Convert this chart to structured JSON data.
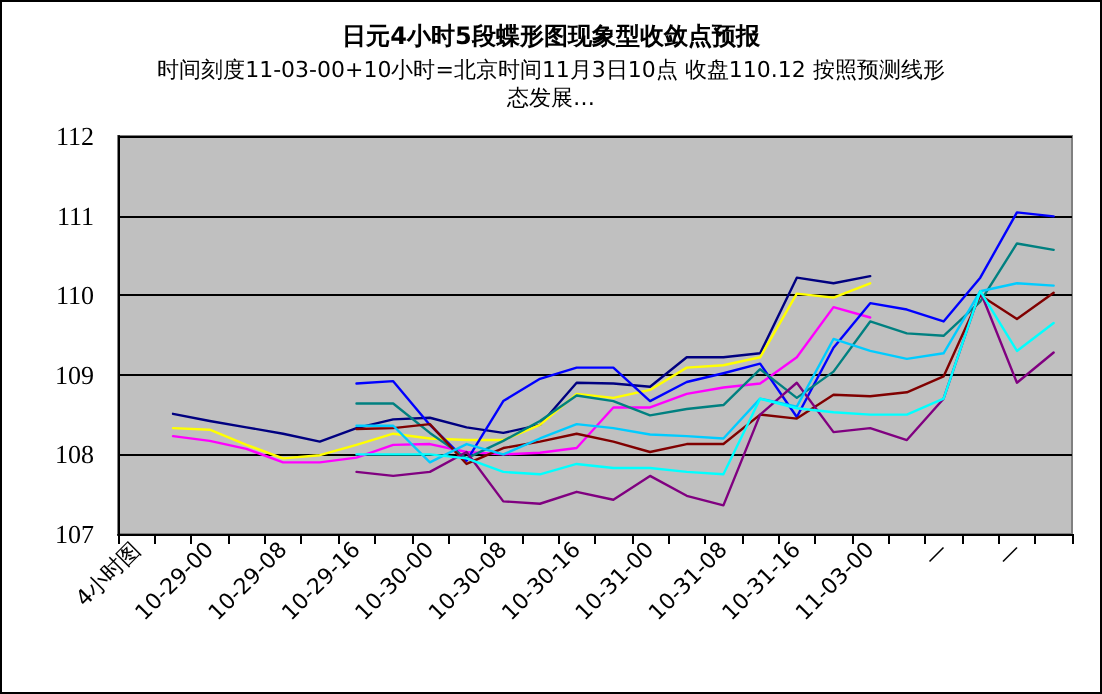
{
  "chart_data": {
    "type": "line",
    "title": "日元4小时5段蝶形图现象型收敛点预报",
    "subtitle": "时间刻度11-03-00+10小时=北京时间11月3日10点 收盘110.12 按照预测线形态发展…",
    "categories": [
      "4小时图",
      null,
      "10-29-00",
      null,
      "10-29-08",
      null,
      "10-29-16",
      null,
      "10-30-00",
      null,
      "10-30-08",
      null,
      "10-30-16",
      null,
      "10-31-00",
      null,
      "10-31-08",
      null,
      "10-31-16",
      null,
      "11-03-00",
      null,
      "—",
      null,
      "—",
      null
    ],
    "ylim": [
      107,
      112
    ],
    "yticks": [
      107,
      108,
      109,
      110,
      111,
      112
    ],
    "grid": "y",
    "marker": "none",
    "line_style": "solid",
    "series": [
      {
        "color": "#000080",
        "values": [
          null,
          108.51,
          108.42,
          108.34,
          108.26,
          108.16,
          108.33,
          108.44,
          108.46,
          108.34,
          108.27,
          108.37,
          108.9,
          108.89,
          108.85,
          109.22,
          109.22,
          109.27,
          110.22,
          110.15,
          110.24,
          null,
          null,
          null,
          null,
          null
        ]
      },
      {
        "color": "#ffff00",
        "values": [
          null,
          108.33,
          108.31,
          108.12,
          107.95,
          107.99,
          108.12,
          108.26,
          108.2,
          108.18,
          108.18,
          108.37,
          108.76,
          108.71,
          108.81,
          109.09,
          109.12,
          109.22,
          110.02,
          109.97,
          110.15,
          null,
          null,
          null,
          null,
          null
        ]
      },
      {
        "color": "#ff00ff",
        "values": [
          null,
          108.23,
          108.17,
          108.07,
          107.9,
          107.9,
          107.96,
          108.12,
          108.13,
          108.03,
          108.0,
          108.02,
          108.08,
          108.59,
          108.59,
          108.76,
          108.84,
          108.89,
          109.22,
          109.85,
          109.72,
          null,
          null,
          null,
          null,
          null
        ]
      },
      {
        "color": "#0000ff",
        "values": [
          null,
          null,
          null,
          null,
          null,
          null,
          108.89,
          108.92,
          108.37,
          107.92,
          108.67,
          108.95,
          109.09,
          109.09,
          108.67,
          108.91,
          109.02,
          109.14,
          108.47,
          109.34,
          109.9,
          109.82,
          109.67,
          110.22,
          111.04,
          110.99
        ]
      },
      {
        "color": "#008080",
        "values": [
          null,
          null,
          null,
          null,
          null,
          null,
          108.64,
          108.64,
          108.27,
          107.95,
          108.17,
          108.42,
          108.74,
          108.67,
          108.49,
          108.57,
          108.62,
          109.07,
          108.71,
          109.04,
          109.67,
          109.52,
          109.49,
          109.92,
          110.65,
          110.57
        ]
      },
      {
        "color": "#800000",
        "values": [
          null,
          null,
          null,
          null,
          null,
          null,
          108.32,
          108.33,
          108.38,
          107.88,
          108.08,
          108.16,
          108.26,
          108.16,
          108.03,
          108.13,
          108.13,
          108.5,
          108.45,
          108.75,
          108.73,
          108.78,
          108.98,
          110.0,
          109.7,
          110.03
        ]
      },
      {
        "color": "#800080",
        "values": [
          null,
          null,
          null,
          null,
          null,
          null,
          107.78,
          107.73,
          107.78,
          108.03,
          107.41,
          107.38,
          107.53,
          107.43,
          107.73,
          107.48,
          107.36,
          108.5,
          108.9,
          108.28,
          108.33,
          108.18,
          108.7,
          110.05,
          108.9,
          109.28
        ]
      },
      {
        "color": "#00ccff",
        "values": [
          null,
          null,
          null,
          null,
          null,
          null,
          108.36,
          108.36,
          107.9,
          108.13,
          108.0,
          108.2,
          108.38,
          108.33,
          108.25,
          108.23,
          108.2,
          108.7,
          108.6,
          109.45,
          109.3,
          109.2,
          109.27,
          110.05,
          110.15,
          110.12
        ]
      },
      {
        "color": "#00ffff",
        "values": [
          null,
          null,
          null,
          null,
          null,
          null,
          108.0,
          108.0,
          108.0,
          107.95,
          107.78,
          107.75,
          107.88,
          107.83,
          107.83,
          107.78,
          107.75,
          108.7,
          108.58,
          108.53,
          108.5,
          108.5,
          108.7,
          110.05,
          109.3,
          109.65
        ]
      }
    ]
  }
}
